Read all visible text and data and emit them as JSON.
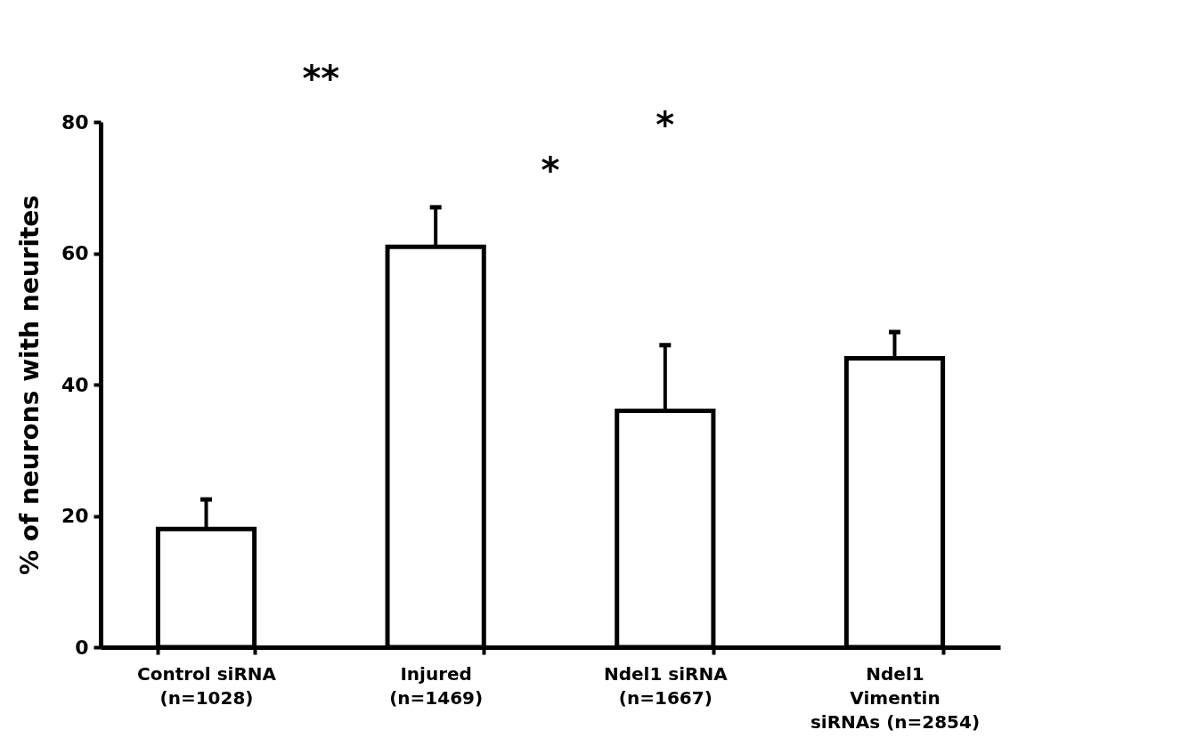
{
  "chart_data": {
    "type": "bar",
    "ylabel": "% of neurons with neurites",
    "categories": [
      "Control siRNA\n(n=1028)",
      "Injured\n(n=1469)",
      "Ndel1 siRNA\n(n=1667)",
      "Ndel1\nVimentin\nsiRNAs (n=2854)"
    ],
    "values": [
      18,
      61,
      36,
      44
    ],
    "errors": [
      4.5,
      6,
      10,
      4
    ],
    "color": "#ffffff",
    "ylim": [
      0,
      80
    ],
    "yticks": [
      0,
      20,
      40,
      60,
      80
    ],
    "annotations": [
      "**",
      "*",
      "*"
    ]
  }
}
